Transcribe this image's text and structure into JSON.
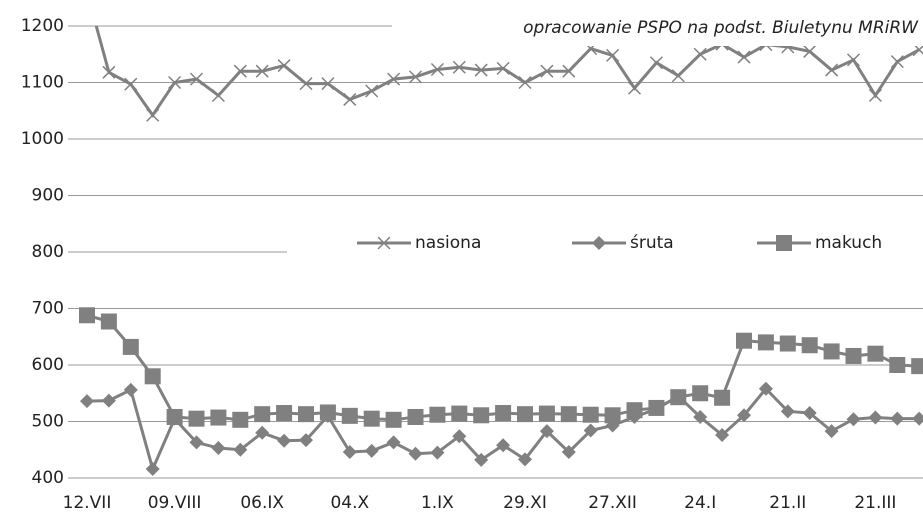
{
  "chart_data": {
    "type": "line",
    "annotation": "opracowanie PSPO na podst. Biuletynu MRiRW",
    "categories": [
      "12.VII",
      null,
      null,
      null,
      "09.VIII",
      null,
      null,
      null,
      "06.IX",
      null,
      null,
      null,
      "04.X",
      null,
      null,
      null,
      "1.IX",
      null,
      null,
      null,
      "29.XI",
      null,
      null,
      null,
      "27.XII",
      null,
      null,
      null,
      "24.I",
      null,
      null,
      null,
      "21.II",
      null,
      null,
      null,
      "21.III",
      null,
      null
    ],
    "series": [
      {
        "name": "nasiona",
        "color": "#808080",
        "marker": "x",
        "values": [
          1260,
          1118,
          1097,
          1042,
          1100,
          1106,
          1077,
          1120,
          1120,
          1130,
          1098,
          1098,
          1070,
          1085,
          1106,
          1110,
          1123,
          1127,
          1122,
          1125,
          1100,
          1120,
          1120,
          1160,
          1148,
          1090,
          1135,
          1112,
          1150,
          1168,
          1145,
          1167,
          1163,
          1155,
          1122,
          1140,
          1077,
          1137,
          1158
        ]
      },
      {
        "name": "śruta",
        "color": "#808080",
        "marker": "diamond",
        "values": [
          536,
          537,
          556,
          416,
          505,
          463,
          453,
          450,
          480,
          466,
          467,
          510,
          446,
          448,
          463,
          443,
          445,
          474,
          432,
          458,
          433,
          483,
          446,
          484,
          493,
          508,
          522,
          545,
          508,
          476,
          511,
          558,
          518,
          515,
          483,
          504,
          507,
          505,
          505
        ]
      },
      {
        "name": "makuch",
        "color": "#808080",
        "marker": "square",
        "values": [
          688,
          677,
          632,
          580,
          508,
          505,
          507,
          503,
          513,
          515,
          513,
          516,
          510,
          505,
          503,
          508,
          512,
          514,
          511,
          515,
          513,
          514,
          513,
          512,
          511,
          520,
          524,
          543,
          550,
          542,
          643,
          640,
          638,
          635,
          624,
          616,
          620,
          600,
          598
        ]
      }
    ],
    "ylim": [
      400,
      1200
    ],
    "yticks": [
      400,
      500,
      600,
      700,
      800,
      900,
      1000,
      1100,
      1200
    ],
    "grid": true
  }
}
